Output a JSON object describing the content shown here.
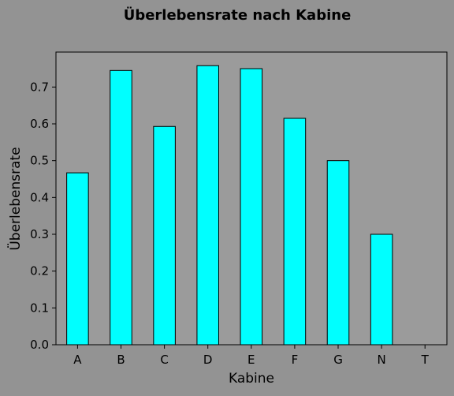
{
  "chart_data": {
    "type": "bar",
    "title": "Überlebensrate nach Kabine",
    "xlabel": "Kabine",
    "ylabel": "Überlebensrate",
    "categories": [
      "A",
      "B",
      "C",
      "D",
      "E",
      "F",
      "G",
      "N",
      "T"
    ],
    "values": [
      0.467,
      0.745,
      0.593,
      0.758,
      0.75,
      0.615,
      0.5,
      0.3,
      0.0
    ],
    "ylim": [
      0,
      0.795
    ],
    "yticks": [
      "0.0",
      "0.1",
      "0.2",
      "0.3",
      "0.4",
      "0.5",
      "0.6",
      "0.7"
    ],
    "bar_color": "#00ffff",
    "bar_edge_color": "#000000",
    "figure_background": "#939393",
    "plot_background": "#9b9b9b",
    "grid": false,
    "legend": "none"
  }
}
